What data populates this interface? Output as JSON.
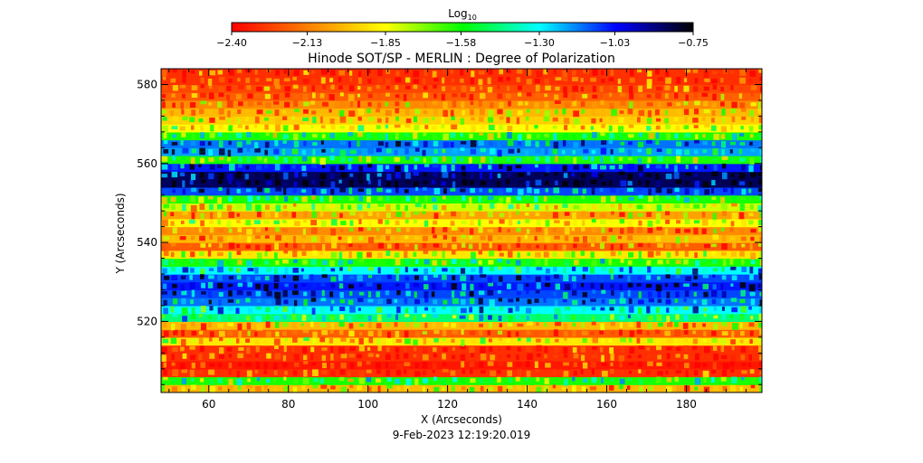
{
  "chart_data": {
    "type": "heatmap",
    "title": "Hinode SOT/SP - MERLIN : Degree of Polarization",
    "xlabel": "X (Arcseconds)",
    "ylabel": "Y (Arcseconds)",
    "xlim": [
      48,
      199
    ],
    "ylim": [
      502,
      584
    ],
    "x_ticks": [
      60,
      80,
      100,
      120,
      140,
      160,
      180
    ],
    "x_tick_labels": [
      "60",
      "80",
      "100",
      "120",
      "140",
      "160",
      "180"
    ],
    "y_ticks": [
      520,
      540,
      560,
      580
    ],
    "y_tick_labels": [
      "520",
      "540",
      "560",
      "580"
    ],
    "colorbar": {
      "label": "Log",
      "label_subscript": "10",
      "range": [
        -2.4,
        -0.75
      ],
      "ticks": [
        -2.4,
        -2.13,
        -1.85,
        -1.58,
        -1.3,
        -1.03,
        -0.75
      ],
      "tick_labels": [
        "−2.40",
        "−2.13",
        "−1.85",
        "−1.58",
        "−1.30",
        "−1.03",
        "−0.75"
      ],
      "colormap": [
        "#ff0000",
        "#ff8000",
        "#ffff00",
        "#00ff00",
        "#00ffff",
        "#0000ff",
        "#000000"
      ],
      "placement": "top"
    },
    "row_profile": {
      "y": [
        503,
        505,
        507,
        509,
        511,
        513,
        515,
        517,
        519,
        521,
        523,
        525,
        527,
        529,
        531,
        533,
        535,
        537,
        539,
        541,
        543,
        545,
        547,
        549,
        551,
        553,
        555,
        557,
        559,
        561,
        563,
        565,
        567,
        569,
        571,
        573,
        575,
        577,
        579,
        581,
        583
      ],
      "log10_value": [
        -2.0,
        -1.6,
        -2.3,
        -2.35,
        -2.3,
        -2.3,
        -1.9,
        -2.2,
        -2.0,
        -1.45,
        -1.3,
        -1.15,
        -1.1,
        -1.05,
        -1.1,
        -1.3,
        -1.6,
        -1.9,
        -2.2,
        -2.0,
        -2.1,
        -1.85,
        -2.05,
        -1.8,
        -1.6,
        -1.1,
        -0.85,
        -0.85,
        -1.05,
        -1.6,
        -1.2,
        -1.15,
        -1.6,
        -1.85,
        -1.95,
        -2.0,
        -2.1,
        -2.2,
        -2.25,
        -2.3,
        -2.3
      ]
    },
    "timestamp": "9-Feb-2023 12:19:20.019"
  }
}
